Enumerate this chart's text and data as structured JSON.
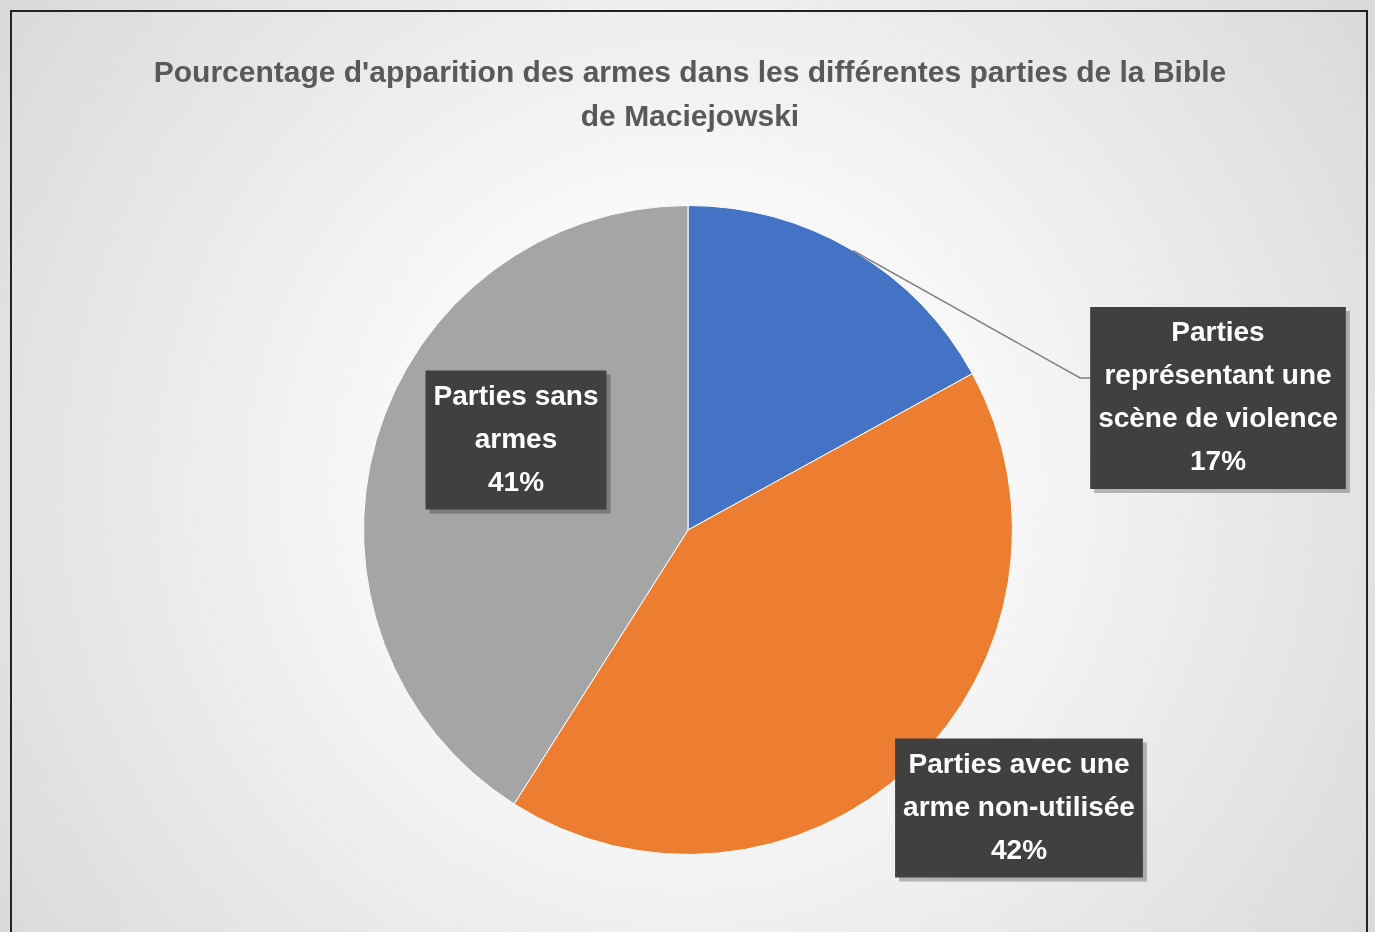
{
  "chart_data": {
    "type": "pie",
    "title": "Pourcentage d'apparition des armes dans les différentes parties de la Bible de Maciejowski",
    "categories": [
      "Parties représentant une scène de violence",
      "Parties avec une arme non-utilisée",
      "Parties sans armes"
    ],
    "values": [
      17,
      42,
      41
    ],
    "colors": [
      "#4472c4",
      "#ed7d31",
      "#a5a5a5"
    ],
    "value_labels": [
      "17%",
      "42%",
      "41%"
    ],
    "legend": false
  }
}
